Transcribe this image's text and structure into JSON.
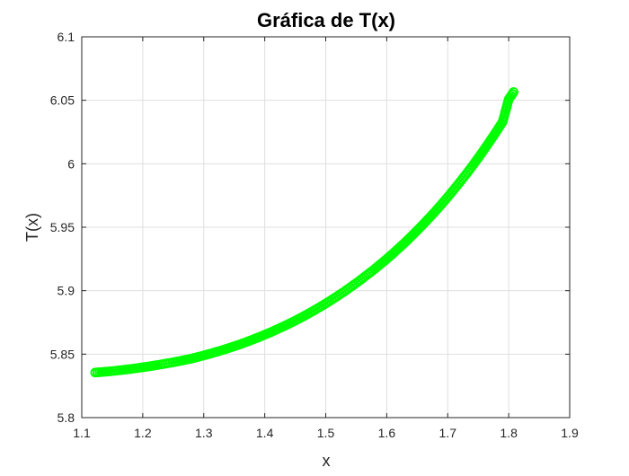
{
  "chart_data": {
    "type": "line",
    "title": "Gráfica de T(x)",
    "xlabel": "x",
    "ylabel": "T(x)",
    "xlim": [
      1.1,
      1.9
    ],
    "ylim": [
      5.8,
      6.1
    ],
    "xticks": [
      1.1,
      1.2,
      1.3,
      1.4,
      1.5,
      1.6,
      1.7,
      1.8,
      1.9
    ],
    "xtick_labels": [
      "1.1",
      "1.2",
      "1.3",
      "1.4",
      "1.5",
      "1.6",
      "1.7",
      "1.8",
      "1.9"
    ],
    "yticks": [
      5.8,
      5.85,
      5.9,
      5.95,
      6.0,
      6.05,
      6.1
    ],
    "ytick_labels": [
      "5.8",
      "5.85",
      "5.9",
      "5.95",
      "6",
      "6.05",
      "6.1"
    ],
    "grid": true,
    "marker": "circle",
    "series_color": "#00ff00",
    "series": [
      {
        "values_x": [
          1.122,
          1.147,
          1.166,
          1.183,
          1.198,
          1.212,
          1.225,
          1.237,
          1.249,
          1.26,
          1.27,
          1.28,
          1.29,
          1.3,
          1.31,
          1.32,
          1.33,
          1.34,
          1.35,
          1.36,
          1.37,
          1.38,
          1.39,
          1.4,
          1.41,
          1.42,
          1.43,
          1.44,
          1.45,
          1.46,
          1.47,
          1.48,
          1.49,
          1.5,
          1.51,
          1.52,
          1.53,
          1.54,
          1.55,
          1.56,
          1.57,
          1.58,
          1.59,
          1.6,
          1.61,
          1.62,
          1.63,
          1.64,
          1.65,
          1.66,
          1.67,
          1.68,
          1.69,
          1.7,
          1.71,
          1.72,
          1.73,
          1.74,
          1.75,
          1.76,
          1.77,
          1.78,
          1.79,
          1.8,
          1.808
        ],
        "values_y": [
          5.8355,
          5.8365,
          5.8375,
          5.8385,
          5.8395,
          5.8405,
          5.8415,
          5.8425,
          5.8435,
          5.8445,
          5.8455,
          5.8465,
          5.8477,
          5.849,
          5.8503,
          5.8517,
          5.8531,
          5.8546,
          5.8562,
          5.8578,
          5.8596,
          5.8614,
          5.8633,
          5.8653,
          5.8673,
          5.8695,
          5.8717,
          5.874,
          5.8764,
          5.8789,
          5.8815,
          5.8842,
          5.887,
          5.8899,
          5.8929,
          5.896,
          5.8992,
          5.9026,
          5.906,
          5.9096,
          5.9133,
          5.917,
          5.921,
          5.925,
          5.9292,
          5.9336,
          5.938,
          5.9427,
          5.9475,
          5.9524,
          5.9575,
          5.9627,
          5.9682,
          5.9738,
          5.9796,
          5.9856,
          5.9917,
          5.998,
          6.0046,
          6.0114,
          6.0184,
          6.0256,
          6.033,
          6.0508,
          6.0565
        ]
      }
    ]
  }
}
